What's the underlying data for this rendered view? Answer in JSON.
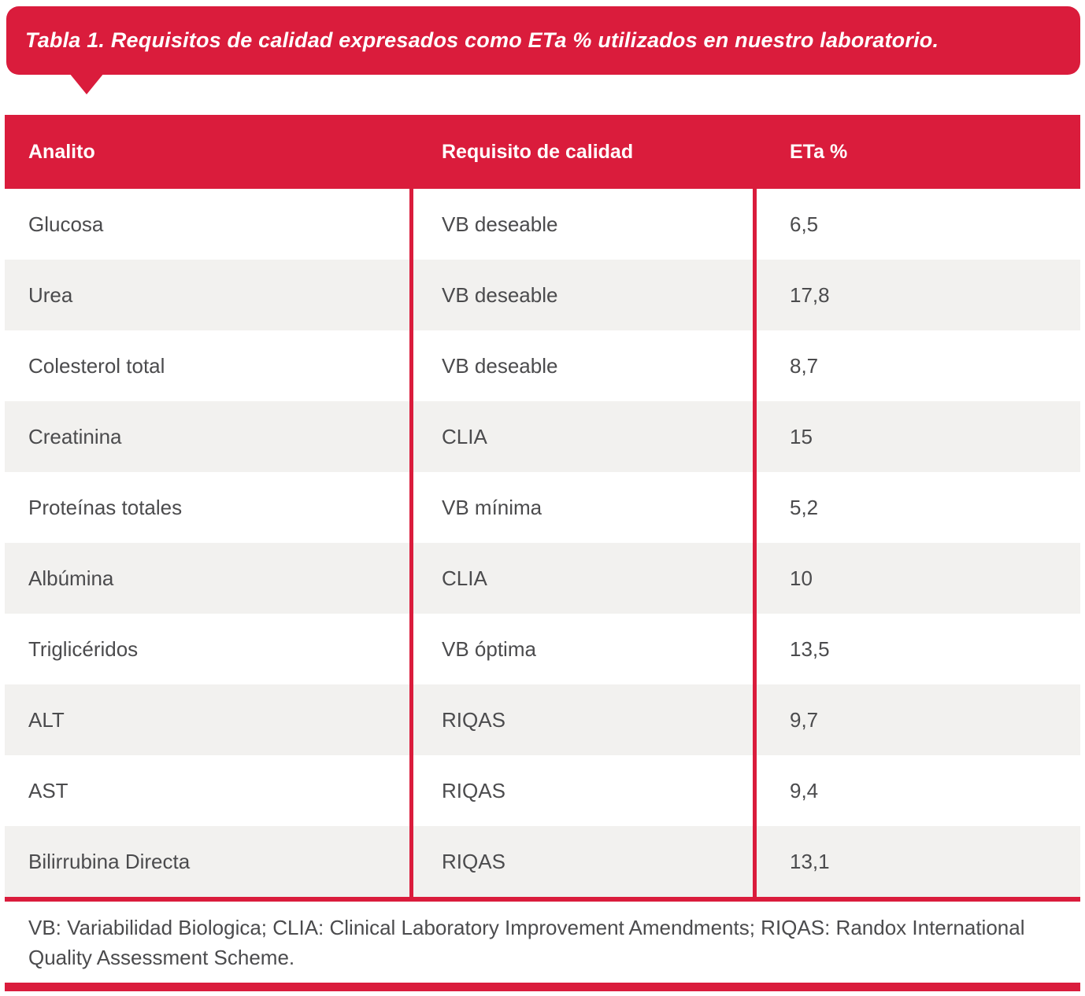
{
  "callout": {
    "title": "Tabla 1. Requisitos de calidad expresados como ETa % utilizados en nuestro laboratorio."
  },
  "table": {
    "columns": [
      "Analito",
      "Requisito de calidad",
      "ETa %"
    ],
    "rows": [
      {
        "analito": "Glucosa",
        "requisito": "VB deseable",
        "eta": "6,5"
      },
      {
        "analito": "Urea",
        "requisito": "VB deseable",
        "eta": "17,8"
      },
      {
        "analito": "Colesterol total",
        "requisito": "VB deseable",
        "eta": "8,7"
      },
      {
        "analito": "Creatinina",
        "requisito": "CLIA",
        "eta": "15"
      },
      {
        "analito": "Proteínas totales",
        "requisito": "VB mínima",
        "eta": "5,2"
      },
      {
        "analito": "Albúmina",
        "requisito": "CLIA",
        "eta": "10"
      },
      {
        "analito": "Triglicéridos",
        "requisito": "VB óptima",
        "eta": "13,5"
      },
      {
        "analito": "ALT",
        "requisito": "RIQAS",
        "eta": "9,7"
      },
      {
        "analito": "AST",
        "requisito": "RIQAS",
        "eta": "9,4"
      },
      {
        "analito": "Bilirrubina Directa",
        "requisito": "RIQAS",
        "eta": "13,1"
      }
    ]
  },
  "footnote": "VB: Variabilidad Biologica; CLIA: Clinical Laboratory Improvement Amendments; RIQAS: Randox International Quality Assessment Scheme.",
  "colors": {
    "accent_red": "#DA1C3C",
    "row_alt_gray": "#F2F1EF",
    "text_gray": "#4B4B4D"
  }
}
